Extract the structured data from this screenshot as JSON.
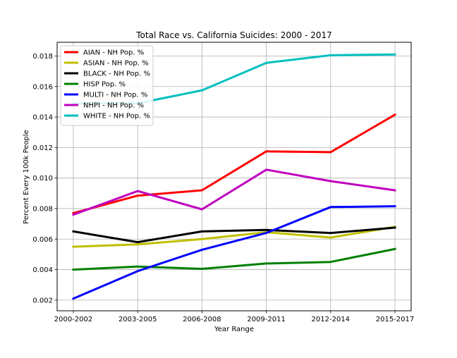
{
  "chart_data": {
    "type": "line",
    "title": "Total Race vs. California Suicides: 2000 - 2017",
    "xlabel": "Year Range",
    "ylabel": "Percent Every 100k People",
    "categories": [
      "2000-2002",
      "2003-2005",
      "2006-2008",
      "2009-2011",
      "2012-2014",
      "2015-2017"
    ],
    "ylim": [
      0.0013,
      0.0189
    ],
    "yticks": [
      "0.002",
      "0.004",
      "0.006",
      "0.008",
      "0.010",
      "0.012",
      "0.014",
      "0.016",
      "0.018"
    ],
    "grid": true,
    "legend_position": "top-left",
    "series": [
      {
        "name": "AIAN - NH Pop. %",
        "color": "#ff0000",
        "values": [
          0.0077,
          0.00885,
          0.0092,
          0.01175,
          0.0117,
          0.01415
        ]
      },
      {
        "name": "ASIAN - NH Pop. %",
        "color": "#bfbf00",
        "values": [
          0.0055,
          0.00565,
          0.006,
          0.00645,
          0.0061,
          0.0068
        ]
      },
      {
        "name": "BLACK - NH Pop. %",
        "color": "#000000",
        "values": [
          0.0065,
          0.0058,
          0.0065,
          0.0066,
          0.0064,
          0.00675
        ]
      },
      {
        "name": "HISP Pop. %",
        "color": "#008000",
        "values": [
          0.004,
          0.0042,
          0.00405,
          0.0044,
          0.0045,
          0.00535
        ]
      },
      {
        "name": "MULTI - NH Pop. %",
        "color": "#0000ff",
        "values": [
          0.0021,
          0.0039,
          0.0053,
          0.0064,
          0.0081,
          0.00815
        ]
      },
      {
        "name": "NHPI - NH Pop. %",
        "color": "#bf00bf",
        "values": [
          0.0076,
          0.00915,
          0.00795,
          0.01055,
          0.0098,
          0.0092
        ]
      },
      {
        "name": "WHITE - NH Pop. %",
        "color": "#00bfbf",
        "values": [
          0.0149,
          0.0149,
          0.01575,
          0.01755,
          0.01805,
          0.0181
        ]
      }
    ]
  }
}
